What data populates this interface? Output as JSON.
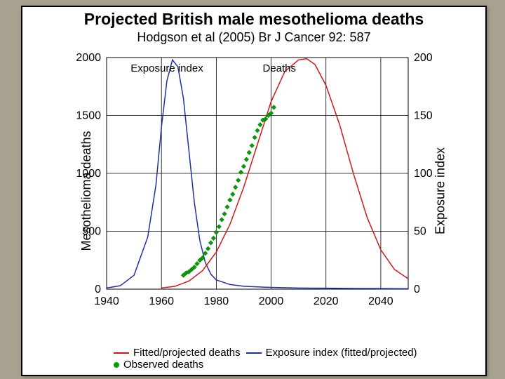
{
  "title": "Projected British male mesothelioma deaths",
  "subtitle": "Hodgson et al (2005) Br J Cancer 92: 587",
  "y_left_label": "Mesothelioma deaths",
  "y_right_label": "Exposure index",
  "chart": {
    "type": "line",
    "background_color": "#ffffff",
    "grid_color": "#000000",
    "xlim": [
      1940,
      2050
    ],
    "ylim_left": [
      0,
      2000
    ],
    "ylim_right": [
      0,
      200
    ],
    "xticks": [
      1940,
      1960,
      1980,
      2000,
      2020,
      2040
    ],
    "yticks_left": [
      0,
      500,
      1000,
      1500,
      2000
    ],
    "yticks_right": [
      0,
      50,
      100,
      150,
      200
    ],
    "inner_labels": {
      "exposure": "Exposure index",
      "deaths": "Deaths"
    },
    "series": {
      "exposure_index": {
        "color": "#2030a0",
        "width": 1.5,
        "points": [
          [
            1940,
            10
          ],
          [
            1945,
            30
          ],
          [
            1950,
            120
          ],
          [
            1955,
            450
          ],
          [
            1958,
            900
          ],
          [
            1960,
            1400
          ],
          [
            1962,
            1800
          ],
          [
            1964,
            1980
          ],
          [
            1966,
            1920
          ],
          [
            1968,
            1650
          ],
          [
            1970,
            1200
          ],
          [
            1972,
            750
          ],
          [
            1974,
            420
          ],
          [
            1976,
            230
          ],
          [
            1978,
            130
          ],
          [
            1980,
            80
          ],
          [
            1985,
            40
          ],
          [
            1990,
            25
          ],
          [
            2000,
            15
          ],
          [
            2010,
            10
          ],
          [
            2020,
            8
          ],
          [
            2030,
            6
          ],
          [
            2040,
            5
          ],
          [
            2050,
            4
          ]
        ]
      },
      "fitted_deaths": {
        "color": "#d01818",
        "width": 1.5,
        "points": [
          [
            1960,
            10
          ],
          [
            1965,
            25
          ],
          [
            1970,
            70
          ],
          [
            1975,
            160
          ],
          [
            1980,
            320
          ],
          [
            1985,
            560
          ],
          [
            1990,
            880
          ],
          [
            1995,
            1250
          ],
          [
            2000,
            1620
          ],
          [
            2005,
            1880
          ],
          [
            2010,
            1980
          ],
          [
            2013,
            1990
          ],
          [
            2016,
            1940
          ],
          [
            2020,
            1760
          ],
          [
            2025,
            1420
          ],
          [
            2030,
            1000
          ],
          [
            2035,
            620
          ],
          [
            2040,
            340
          ],
          [
            2045,
            170
          ],
          [
            2050,
            90
          ]
        ]
      },
      "observed": {
        "color": "#00a000",
        "marker_size": 3.3,
        "marker": "diamond",
        "points": [
          [
            1968,
            120
          ],
          [
            1969,
            140
          ],
          [
            1970,
            150
          ],
          [
            1971,
            170
          ],
          [
            1972,
            190
          ],
          [
            1973,
            220
          ],
          [
            1974,
            250
          ],
          [
            1975,
            270
          ],
          [
            1976,
            310
          ],
          [
            1977,
            350
          ],
          [
            1978,
            400
          ],
          [
            1979,
            440
          ],
          [
            1980,
            490
          ],
          [
            1981,
            540
          ],
          [
            1982,
            600
          ],
          [
            1983,
            650
          ],
          [
            1984,
            710
          ],
          [
            1985,
            770
          ],
          [
            1986,
            820
          ],
          [
            1987,
            880
          ],
          [
            1988,
            940
          ],
          [
            1989,
            1010
          ],
          [
            1990,
            1060
          ],
          [
            1991,
            1120
          ],
          [
            1992,
            1180
          ],
          [
            1993,
            1240
          ],
          [
            1994,
            1310
          ],
          [
            1995,
            1370
          ],
          [
            1996,
            1420
          ],
          [
            1997,
            1460
          ],
          [
            1998,
            1470
          ],
          [
            1999,
            1500
          ],
          [
            2000,
            1520
          ],
          [
            2001,
            1570
          ]
        ]
      }
    }
  },
  "legend": {
    "fitted": "Fitted/projected deaths",
    "exposure": "Exposure index (fitted/projected)",
    "observed": "Observed deaths",
    "fitted_color": "#d01818",
    "exposure_color": "#2030a0",
    "observed_color": "#00a000"
  }
}
